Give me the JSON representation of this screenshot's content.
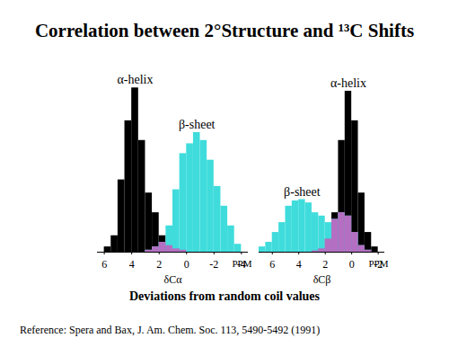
{
  "title": "Correlation between 2°Structure and ¹³C Shifts",
  "caption": "Deviations from random coil values",
  "reference": "Reference: Spera and Bax, J. Am. Chem. Soc. 113, 5490-5492 (1991)",
  "chart_data": [
    {
      "type": "histogram",
      "xlabel": "δCα",
      "annotations": [
        "PPM"
      ],
      "bins": [
        -4.5,
        -4,
        -3.5,
        -3,
        -2.5,
        -2,
        -1.5,
        -1,
        -0.5,
        0,
        0.5,
        1,
        1.5,
        2,
        2.5,
        3,
        3.5,
        4,
        4.5,
        5,
        5.5,
        6,
        6.5
      ],
      "series": [
        {
          "name": "α-helix",
          "color": "#000000",
          "values": [
            0,
            0,
            0,
            0,
            0,
            0,
            0,
            0,
            0,
            3,
            5,
            10,
            25,
            60,
            90,
            170,
            250,
            200,
            110,
            25,
            8,
            0
          ]
        },
        {
          "name": "β-sheet",
          "color": "#40dcdc",
          "values": [
            0,
            12,
            40,
            70,
            100,
            140,
            170,
            182,
            165,
            150,
            95,
            40,
            15,
            8,
            3,
            0,
            0,
            0,
            0,
            0,
            0,
            0
          ]
        }
      ],
      "xlim": [
        6.5,
        -4.5
      ],
      "xticks": [
        6,
        4,
        2,
        0,
        -2,
        -4
      ],
      "ylim": [
        0,
        260
      ],
      "tick_labels": "x"
    },
    {
      "type": "histogram",
      "xlabel": "δCβ",
      "annotations": [
        "PPM"
      ],
      "bins": [
        -2.5,
        -2,
        -1.5,
        -1,
        -0.5,
        0,
        0.5,
        1,
        1.5,
        2,
        2.5,
        3,
        3.5,
        4,
        4.5,
        5,
        5.5,
        6,
        6.5,
        7
      ],
      "series": [
        {
          "name": "α-helix",
          "color": "#000000",
          "values": [
            0,
            8,
            30,
            90,
            200,
            245,
            170,
            60,
            20,
            5,
            2,
            0,
            0,
            0,
            0,
            0,
            0,
            0,
            0
          ]
        },
        {
          "name": "β-sheet",
          "color": "#40dcdc",
          "values": [
            0,
            0,
            3,
            10,
            30,
            55,
            60,
            50,
            45,
            55,
            60,
            75,
            80,
            78,
            70,
            45,
            30,
            15,
            8
          ]
        }
      ],
      "xlim": [
        7,
        -2.5
      ],
      "xticks": [
        6,
        4,
        2,
        0,
        -2
      ],
      "ylim": [
        0,
        260
      ],
      "tick_labels": "x"
    }
  ]
}
